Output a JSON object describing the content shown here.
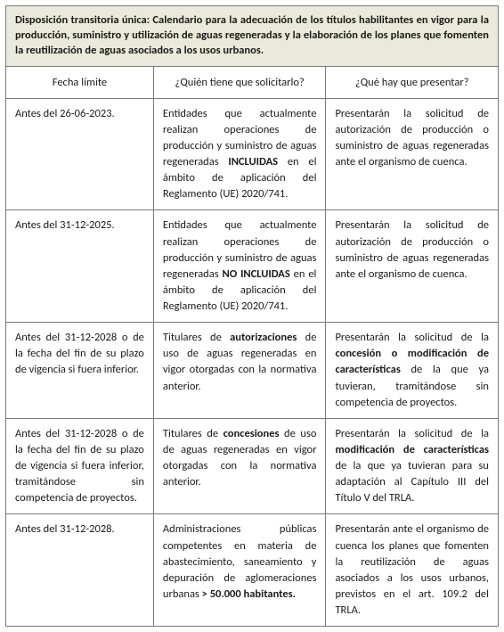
{
  "title": "Disposición transitoria única: Calendario para la adecuación de los títulos habilitantes en vigor para la producción, suministro y utilización de aguas regeneradas y la elaboración de los planes que fomenten la reutilización de aguas asociados a los usos urbanos.",
  "headers": {
    "col1": "Fecha límite",
    "col2": "¿Quién tiene que solicitarlo?",
    "col3": "¿Qué hay que presentar?"
  },
  "rows": [
    {
      "c1": "Antes del 26-06-2023.",
      "c2": "Entidades que actualmente realizan operaciones de producción y suministro de aguas regeneradas <b>INCLUIDAS</b> en el ámbito de aplicación del Reglamento (UE) 2020/741.",
      "c3": "Presentarán la solicitud de autorización de producción o suministro de aguas regeneradas ante el organismo de cuenca."
    },
    {
      "c1": "Antes del 31-12-2025.",
      "c2": "Entidades que actualmente realizan operaciones de producción y suministro de aguas regeneradas <b>NO INCLUIDAS</b> en el ámbito de aplicación del Reglamento (UE) 2020/741.",
      "c3": "Presentarán la solicitud de autorización de producción o suministro de aguas regeneradas ante el organismo de cuenca."
    },
    {
      "c1": "Antes del 31-12-2028 o de la fecha del fin de su plazo de vigencia si fuera inferior.",
      "c2": "Titulares de <b>autorizaciones</b> de uso de aguas regeneradas en vigor otorgadas con la normativa anterior.",
      "c3": "Presentarán la solicitud de la <b>concesión o modificación de características</b> de la que ya tuvieran, tramitándose sin competencia de proyectos."
    },
    {
      "c1": "Antes del 31-12-2028 o de la fecha del fin de su plazo de vigencia si fuera inferior, tramitándose sin competencia de proyectos.",
      "c2": "Titulares de <b>concesiones</b> de uso de aguas regeneradas en vigor otorgadas con la normativa anterior.",
      "c3": "Presentarán la solicitud de la <b>modificación de características</b> de la que ya tuvieran para su adaptación al Capítulo III del Título V del TRLA."
    },
    {
      "c1": "Antes del 31-12-2028.",
      "c2": "Administraciones públicas competentes en materia de abastecimiento, saneamiento y depuración de aglomeraciones urbanas <b>> 50.000 habitantes.</b>",
      "c3": "Presentarán ante el organismo de cuenca los planes que fomenten la reutilización de aguas asociados a los usos urbanos, previstos en el art. 109.2 del TRLA."
    }
  ]
}
